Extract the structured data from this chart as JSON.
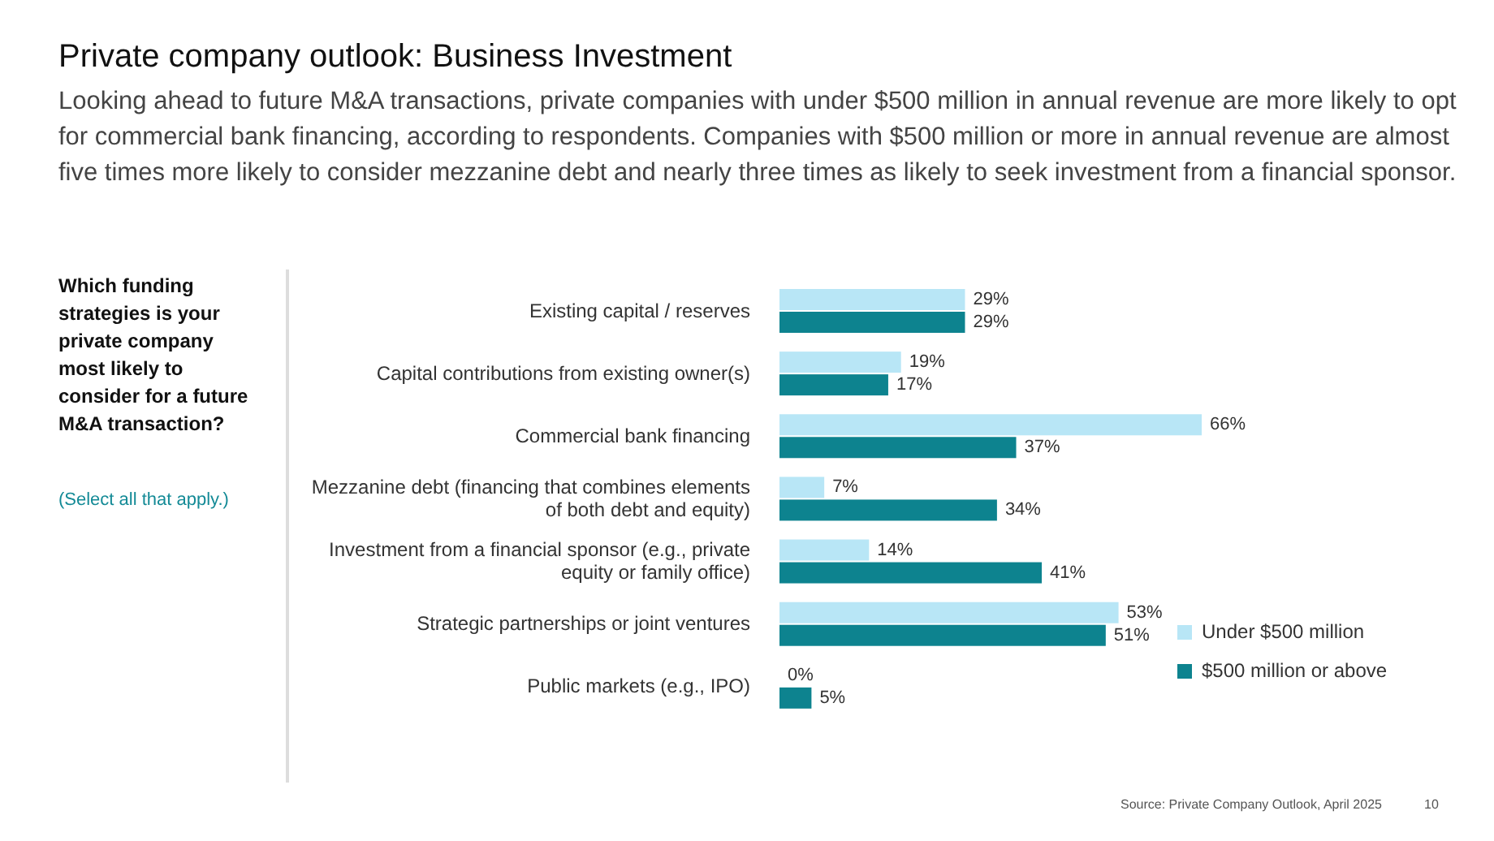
{
  "chart_data": {
    "type": "bar",
    "orientation": "horizontal",
    "title": "Private company outlook: Business Investment",
    "subtitle": "Looking ahead to future M&A transactions, private companies with under $500 million in annual revenue are more likely to opt for commercial bank financing, according to respondents. Companies with $500 million or more in annual revenue are almost five times more likely to consider mezzanine debt and nearly three times as likely to seek investment from a financial sponsor.",
    "categories": [
      "Existing capital / reserves",
      "Capital contributions from existing owner(s)",
      "Commercial bank financing",
      "Mezzanine debt (financing that combines elements of both debt and equity)",
      "Investment from a financial sponsor (e.g., private equity or family office)",
      "Strategic partnerships or joint ventures",
      "Public markets (e.g., IPO)"
    ],
    "series": [
      {
        "name": "Under $500 million",
        "color": "#b8e6f6",
        "values": [
          29,
          19,
          66,
          7,
          14,
          53,
          0
        ],
        "value_labels": [
          "29%",
          "19%",
          "66%",
          "7%",
          "14%",
          "53%",
          "0%"
        ]
      },
      {
        "name": "$500 million or above",
        "color": "#0d838f",
        "values": [
          29,
          17,
          37,
          34,
          41,
          51,
          5
        ],
        "value_labels": [
          "29%",
          "17%",
          "37%",
          "34%",
          "41%",
          "51%",
          "5%"
        ]
      }
    ],
    "legend": "bottom right",
    "grid": false,
    "annotations": [
      "Which funding strategies is your private company most likely to consider for a future M&A transaction?",
      "(Select all that apply.)",
      "Source: Private Company Outlook, April 2025",
      "10"
    ]
  }
}
